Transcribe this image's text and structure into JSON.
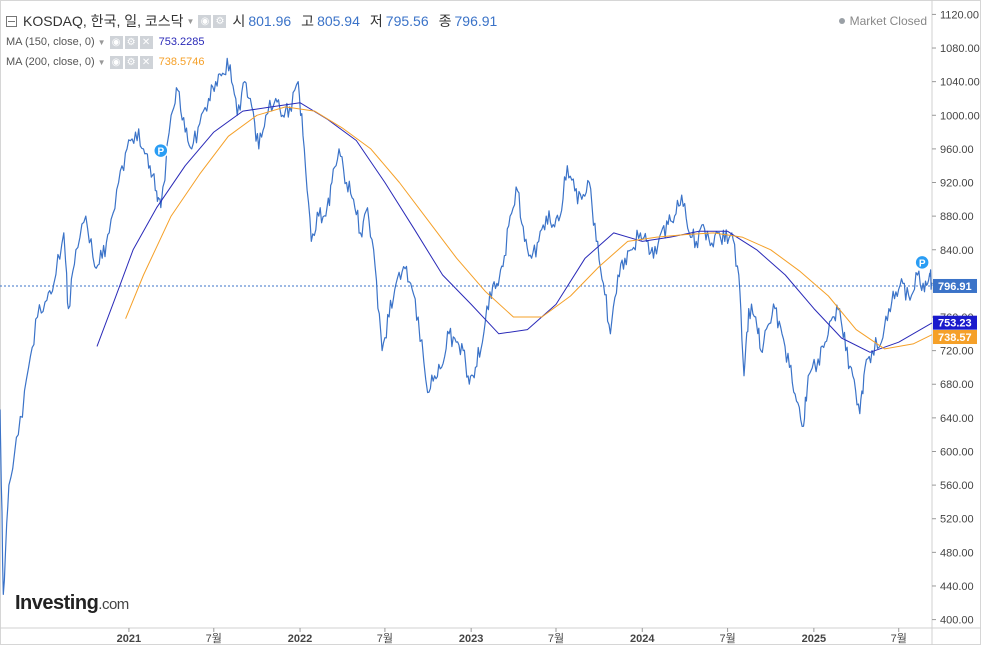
{
  "legend": {
    "symbol": "KOSDAQ, 한국, 일, 코스닥",
    "open_label": "시",
    "open_value": "801.96",
    "high_label": "고",
    "high_value": "805.94",
    "low_label": "저",
    "low_value": "795.56",
    "close_label": "종",
    "close_value": "796.91",
    "ma150_label": "MA (150, close, 0)",
    "ma150_value": "753.2285",
    "ma200_label": "MA (200, close, 0)",
    "ma200_value": "738.5746"
  },
  "status": "Market Closed",
  "brand": {
    "name": "Investing",
    "suffix": ".com"
  },
  "colors": {
    "price": "#3b73c8",
    "ma150": "#2a2ab8",
    "ma200": "#f5a028",
    "current_tag": "#3b73c8"
  },
  "chart_data": {
    "type": "line",
    "y_range": [
      390,
      1130
    ],
    "x_range": [
      "2020-04-01",
      "2025-09-10"
    ],
    "y_ticks": [
      "400.00",
      "440.00",
      "480.00",
      "520.00",
      "560.00",
      "600.00",
      "640.00",
      "680.00",
      "720.00",
      "760.00",
      "800.00",
      "840.00",
      "880.00",
      "920.00",
      "960.00",
      "1000.00",
      "1040.00",
      "1080.00",
      "1120.00"
    ],
    "x_ticks": [
      {
        "label": "2021",
        "date": "2021-01-01",
        "bold": true
      },
      {
        "label": "7월",
        "date": "2021-07-01"
      },
      {
        "label": "2022",
        "date": "2022-01-01",
        "bold": true
      },
      {
        "label": "7월",
        "date": "2022-07-01"
      },
      {
        "label": "2023",
        "date": "2023-01-01",
        "bold": true
      },
      {
        "label": "7월",
        "date": "2023-07-01"
      },
      {
        "label": "2024",
        "date": "2024-01-01",
        "bold": true
      },
      {
        "label": "7월",
        "date": "2024-07-01"
      },
      {
        "label": "2025",
        "date": "2025-01-01",
        "bold": true
      },
      {
        "label": "7월",
        "date": "2025-07-01"
      }
    ],
    "current_line": 796.91,
    "price_tags": [
      {
        "value": 796.91,
        "text": "796.91",
        "style": "price"
      },
      {
        "value": 753.23,
        "text": "753.23",
        "style": "ma150"
      },
      {
        "value": 738.57,
        "text": "738.57",
        "style": "ma200"
      }
    ],
    "markers": [
      {
        "label": "P",
        "date": "2021-03-10",
        "y": 958
      },
      {
        "label": "P",
        "date": "2025-08-20",
        "y": 825
      }
    ],
    "series": [
      {
        "key": "price",
        "points": [
          [
            "2020-04-01",
            650
          ],
          [
            "2020-04-08",
            430
          ],
          [
            "2020-04-20",
            560
          ],
          [
            "2020-05-10",
            620
          ],
          [
            "2020-06-01",
            700
          ],
          [
            "2020-06-20",
            760
          ],
          [
            "2020-07-10",
            780
          ],
          [
            "2020-07-25",
            800
          ],
          [
            "2020-08-15",
            860
          ],
          [
            "2020-08-25",
            770
          ],
          [
            "2020-09-10",
            840
          ],
          [
            "2020-10-01",
            880
          ],
          [
            "2020-10-20",
            820
          ],
          [
            "2020-11-05",
            830
          ],
          [
            "2020-11-20",
            860
          ],
          [
            "2020-12-10",
            920
          ],
          [
            "2020-12-28",
            960
          ],
          [
            "2021-01-15",
            980
          ],
          [
            "2021-02-01",
            960
          ],
          [
            "2021-02-15",
            940
          ],
          [
            "2021-03-01",
            910
          ],
          [
            "2021-03-10",
            890
          ],
          [
            "2021-04-01",
            1000
          ],
          [
            "2021-04-15",
            1030
          ],
          [
            "2021-05-01",
            980
          ],
          [
            "2021-05-15",
            960
          ],
          [
            "2021-06-01",
            990
          ],
          [
            "2021-06-20",
            1020
          ],
          [
            "2021-07-05",
            1040
          ],
          [
            "2021-07-20",
            1050
          ],
          [
            "2021-08-05",
            1060
          ],
          [
            "2021-08-20",
            1000
          ],
          [
            "2021-09-05",
            1040
          ],
          [
            "2021-09-20",
            1010
          ],
          [
            "2021-10-05",
            960
          ],
          [
            "2021-10-20",
            1000
          ],
          [
            "2021-11-10",
            1020
          ],
          [
            "2021-11-25",
            1000
          ],
          [
            "2021-12-10",
            1010
          ],
          [
            "2021-12-28",
            1040
          ],
          [
            "2022-01-10",
            960
          ],
          [
            "2022-01-25",
            850
          ],
          [
            "2022-02-10",
            880
          ],
          [
            "2022-02-25",
            880
          ],
          [
            "2022-03-10",
            920
          ],
          [
            "2022-03-25",
            960
          ],
          [
            "2022-04-10",
            920
          ],
          [
            "2022-04-25",
            900
          ],
          [
            "2022-05-10",
            860
          ],
          [
            "2022-05-25",
            890
          ],
          [
            "2022-06-10",
            820
          ],
          [
            "2022-06-25",
            720
          ],
          [
            "2022-07-10",
            760
          ],
          [
            "2022-07-25",
            800
          ],
          [
            "2022-08-10",
            820
          ],
          [
            "2022-08-25",
            800
          ],
          [
            "2022-09-10",
            760
          ],
          [
            "2022-09-30",
            670
          ],
          [
            "2022-10-15",
            690
          ],
          [
            "2022-10-30",
            700
          ],
          [
            "2022-11-15",
            740
          ],
          [
            "2022-11-30",
            730
          ],
          [
            "2022-12-15",
            720
          ],
          [
            "2022-12-28",
            680
          ],
          [
            "2023-01-10",
            700
          ],
          [
            "2023-01-25",
            730
          ],
          [
            "2023-02-10",
            790
          ],
          [
            "2023-02-25",
            800
          ],
          [
            "2023-03-10",
            820
          ],
          [
            "2023-03-25",
            880
          ],
          [
            "2023-04-10",
            910
          ],
          [
            "2023-04-25",
            850
          ],
          [
            "2023-05-10",
            830
          ],
          [
            "2023-05-25",
            850
          ],
          [
            "2023-06-10",
            880
          ],
          [
            "2023-06-25",
            870
          ],
          [
            "2023-07-10",
            880
          ],
          [
            "2023-07-25",
            940
          ],
          [
            "2023-08-10",
            910
          ],
          [
            "2023-08-25",
            900
          ],
          [
            "2023-09-10",
            920
          ],
          [
            "2023-09-25",
            850
          ],
          [
            "2023-10-10",
            800
          ],
          [
            "2023-10-25",
            740
          ],
          [
            "2023-11-10",
            810
          ],
          [
            "2023-11-25",
            830
          ],
          [
            "2023-12-10",
            840
          ],
          [
            "2023-12-28",
            860
          ],
          [
            "2024-01-10",
            850
          ],
          [
            "2024-01-25",
            830
          ],
          [
            "2024-02-10",
            860
          ],
          [
            "2024-02-25",
            870
          ],
          [
            "2024-03-10",
            880
          ],
          [
            "2024-03-25",
            905
          ],
          [
            "2024-04-10",
            860
          ],
          [
            "2024-04-25",
            850
          ],
          [
            "2024-05-10",
            870
          ],
          [
            "2024-05-25",
            845
          ],
          [
            "2024-06-10",
            860
          ],
          [
            "2024-06-25",
            850
          ],
          [
            "2024-07-10",
            860
          ],
          [
            "2024-07-25",
            810
          ],
          [
            "2024-08-05",
            690
          ],
          [
            "2024-08-15",
            770
          ],
          [
            "2024-08-30",
            760
          ],
          [
            "2024-09-10",
            720
          ],
          [
            "2024-09-25",
            750
          ],
          [
            "2024-10-10",
            770
          ],
          [
            "2024-10-25",
            740
          ],
          [
            "2024-11-10",
            700
          ],
          [
            "2024-11-25",
            660
          ],
          [
            "2024-12-10",
            630
          ],
          [
            "2024-12-20",
            690
          ],
          [
            "2025-01-10",
            710
          ],
          [
            "2025-01-25",
            730
          ],
          [
            "2025-02-10",
            760
          ],
          [
            "2025-02-25",
            770
          ],
          [
            "2025-03-10",
            720
          ],
          [
            "2025-03-25",
            690
          ],
          [
            "2025-04-09",
            645
          ],
          [
            "2025-04-20",
            700
          ],
          [
            "2025-05-05",
            720
          ],
          [
            "2025-05-25",
            730
          ],
          [
            "2025-06-10",
            770
          ],
          [
            "2025-06-25",
            790
          ],
          [
            "2025-07-10",
            800
          ],
          [
            "2025-07-25",
            780
          ],
          [
            "2025-08-10",
            810
          ],
          [
            "2025-08-25",
            790
          ],
          [
            "2025-09-05",
            812
          ],
          [
            "2025-09-10",
            797
          ]
        ]
      },
      {
        "key": "ma150",
        "points": [
          [
            "2020-10-25",
            725
          ],
          [
            "2020-12-01",
            780
          ],
          [
            "2021-01-10",
            840
          ],
          [
            "2021-03-01",
            890
          ],
          [
            "2021-05-01",
            940
          ],
          [
            "2021-07-01",
            980
          ],
          [
            "2021-09-01",
            1005
          ],
          [
            "2021-11-01",
            1010
          ],
          [
            "2022-01-01",
            1015
          ],
          [
            "2022-03-01",
            995
          ],
          [
            "2022-05-01",
            970
          ],
          [
            "2022-07-01",
            920
          ],
          [
            "2022-09-01",
            865
          ],
          [
            "2022-11-01",
            810
          ],
          [
            "2023-01-01",
            775
          ],
          [
            "2023-03-01",
            740
          ],
          [
            "2023-05-01",
            745
          ],
          [
            "2023-07-01",
            775
          ],
          [
            "2023-09-01",
            830
          ],
          [
            "2023-11-01",
            860
          ],
          [
            "2024-01-01",
            850
          ],
          [
            "2024-03-01",
            855
          ],
          [
            "2024-05-01",
            862
          ],
          [
            "2024-07-01",
            862
          ],
          [
            "2024-09-01",
            840
          ],
          [
            "2024-11-01",
            810
          ],
          [
            "2025-01-01",
            770
          ],
          [
            "2025-03-01",
            735
          ],
          [
            "2025-05-01",
            718
          ],
          [
            "2025-07-01",
            730
          ],
          [
            "2025-09-10",
            753
          ]
        ]
      },
      {
        "key": "ma200",
        "points": [
          [
            "2020-12-25",
            758
          ],
          [
            "2021-02-01",
            810
          ],
          [
            "2021-04-01",
            880
          ],
          [
            "2021-06-01",
            930
          ],
          [
            "2021-08-01",
            975
          ],
          [
            "2021-10-01",
            1000
          ],
          [
            "2021-12-01",
            1010
          ],
          [
            "2022-02-01",
            1005
          ],
          [
            "2022-04-01",
            985
          ],
          [
            "2022-06-01",
            960
          ],
          [
            "2022-08-01",
            920
          ],
          [
            "2022-10-01",
            875
          ],
          [
            "2022-12-01",
            830
          ],
          [
            "2023-02-01",
            790
          ],
          [
            "2023-04-01",
            760
          ],
          [
            "2023-06-01",
            760
          ],
          [
            "2023-08-01",
            785
          ],
          [
            "2023-10-01",
            820
          ],
          [
            "2023-12-01",
            850
          ],
          [
            "2024-02-01",
            855
          ],
          [
            "2024-04-01",
            858
          ],
          [
            "2024-06-01",
            860
          ],
          [
            "2024-08-01",
            855
          ],
          [
            "2024-10-01",
            840
          ],
          [
            "2024-12-01",
            815
          ],
          [
            "2025-02-01",
            785
          ],
          [
            "2025-04-01",
            745
          ],
          [
            "2025-06-01",
            722
          ],
          [
            "2025-08-01",
            728
          ],
          [
            "2025-09-10",
            739
          ]
        ]
      }
    ]
  }
}
